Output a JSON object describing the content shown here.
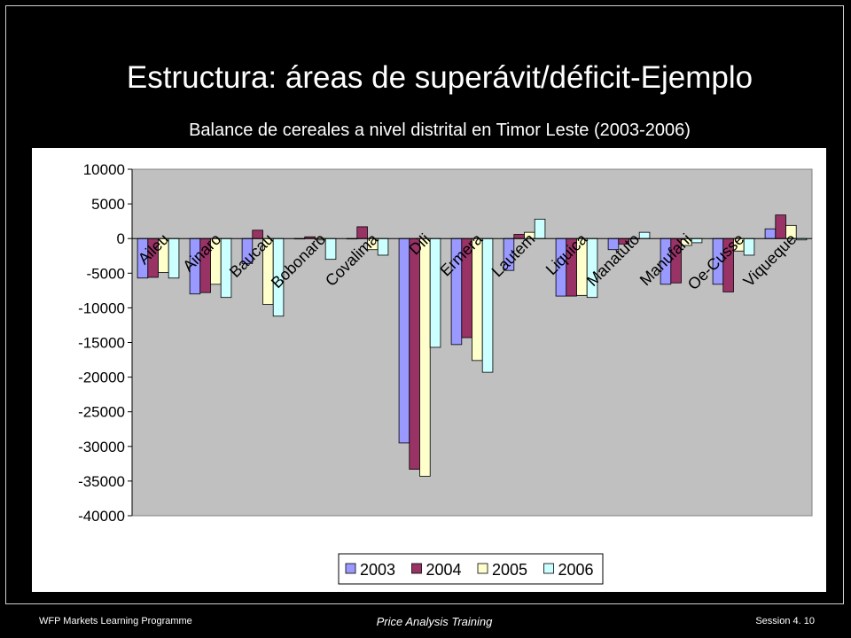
{
  "slide": {
    "title": "Estructura: áreas de superávit/déficit-Ejemplo",
    "footer_left": "WFP Markets Learning Programme",
    "footer_center": "Price Analysis Training",
    "footer_right": "Session 4. 10"
  },
  "chart_data": {
    "type": "bar",
    "title": "Balance de cereales a nivel distrital en Timor  Leste (2003-2006)",
    "xlabel": "",
    "ylabel": "",
    "ylim": [
      -40000,
      10000
    ],
    "yticks": [
      10000,
      5000,
      0,
      -5000,
      -10000,
      -15000,
      -20000,
      -25000,
      -30000,
      -35000,
      -40000
    ],
    "grid": false,
    "legend_position": "bottom",
    "categories": [
      "Aileu",
      "Ainaro",
      "Baucau",
      "Bobonaro",
      "Covalima",
      "Dili",
      "Ermera",
      "Lautem",
      "Liquica",
      "Manatuto",
      "Manufahi",
      "Oe-Cusse",
      "Viqueque"
    ],
    "series": [
      {
        "name": "2003",
        "color": "#9999ff",
        "values": [
          -5700,
          -8000,
          -3600,
          0,
          0,
          -29500,
          -15300,
          -4600,
          -8300,
          -1600,
          -6600,
          -6600,
          1400
        ]
      },
      {
        "name": "2004",
        "color": "#993366",
        "values": [
          -5600,
          -7800,
          1200,
          250,
          1700,
          -33300,
          -14300,
          600,
          -8300,
          -800,
          -6400,
          -7700,
          3400
        ]
      },
      {
        "name": "2005",
        "color": "#ffffcc",
        "values": [
          -4900,
          -6600,
          -9500,
          -200,
          -1600,
          -34300,
          -17600,
          900,
          -8200,
          0,
          -1000,
          -1800,
          1900
        ]
      },
      {
        "name": "2006",
        "color": "#ccffff",
        "values": [
          -5700,
          -8500,
          -11200,
          -3000,
          -2400,
          -15700,
          -19300,
          2800,
          -8500,
          900,
          -600,
          -2400,
          -200
        ]
      }
    ]
  }
}
